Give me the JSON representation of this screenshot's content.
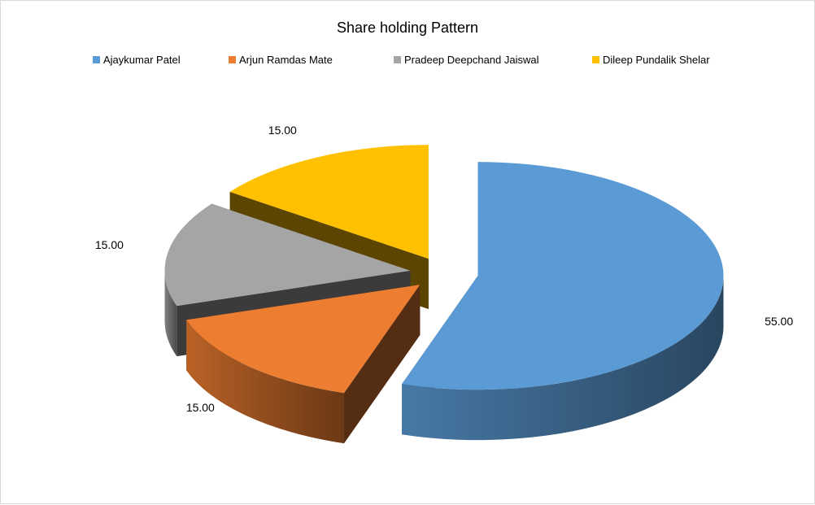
{
  "chart_data": {
    "type": "pie",
    "style": "3d-exploded",
    "title": "Share holding Pattern",
    "legend_position": "top",
    "categories": [
      "Ajaykumar Patel",
      "Arjun Ramdas Mate",
      "Pradeep Deepchand Jaiswal",
      "Dileep Pundalik Shelar"
    ],
    "values": [
      55,
      15,
      15,
      15
    ],
    "data_labels": [
      "55.00",
      "15.00",
      "15.00",
      "15.00"
    ],
    "colors": [
      "#5B9BD5",
      "#ED7D31",
      "#A5A5A5",
      "#FFC000"
    ]
  }
}
